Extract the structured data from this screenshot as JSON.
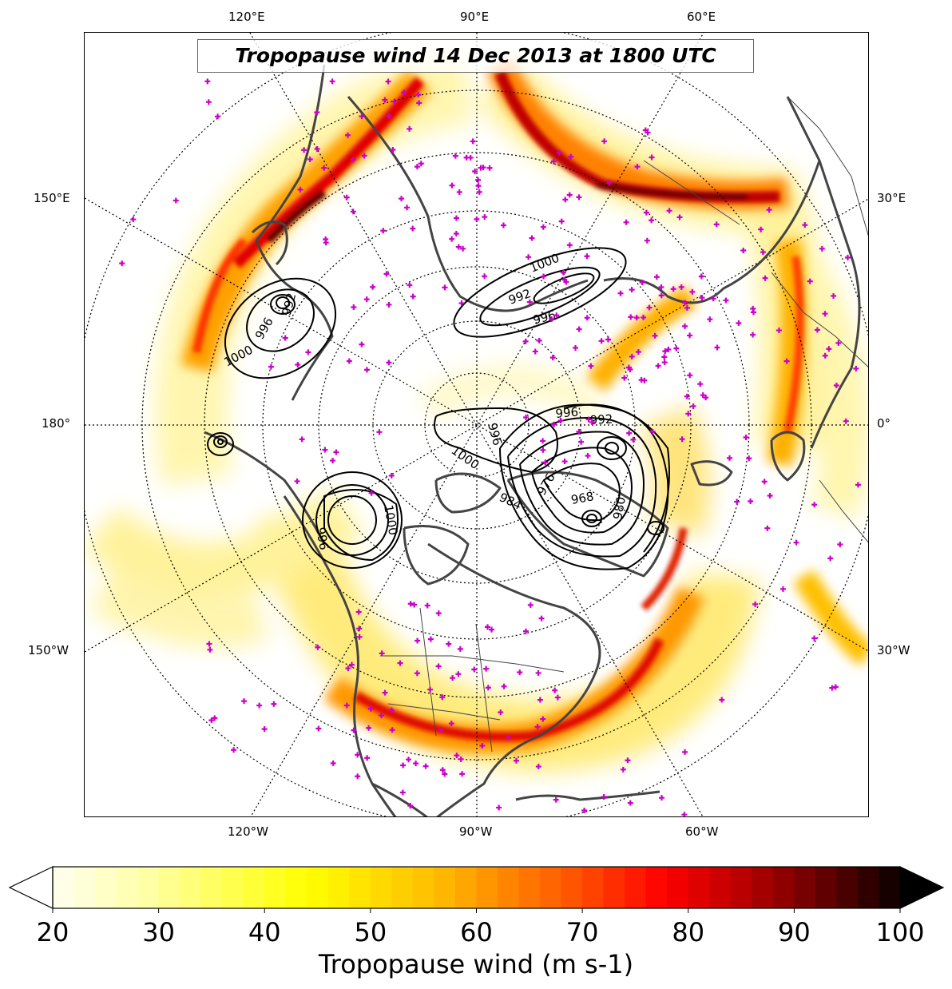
{
  "title": "Tropopause wind 14 Dec 2013 at 1800 UTC",
  "lon_labels": {
    "top": [
      "120°E",
      "90°E",
      "60°E"
    ],
    "left": [
      "150°E",
      "180°",
      "150°W"
    ],
    "right": [
      "30°E",
      "0°",
      "30°W"
    ],
    "bottom": [
      "120°W",
      "90°W",
      "60°W"
    ]
  },
  "contour_labels": [
    "1000",
    "996",
    "992",
    "1000",
    "996",
    "992",
    "996",
    "992",
    "1000",
    "968",
    "980",
    "984",
    "976",
    "996",
    "1000",
    "996"
  ],
  "colorbar": {
    "label": "Tropopause wind (m s-1)",
    "ticks": [
      "20",
      "30",
      "40",
      "50",
      "60",
      "70",
      "80",
      "90",
      "100"
    ],
    "min": 20,
    "max": 100,
    "colormap": "hot_r",
    "extend": "both"
  },
  "colors": {
    "coastline": "#444444",
    "station_marker": "#cc00cc",
    "contour": "#000000"
  }
}
